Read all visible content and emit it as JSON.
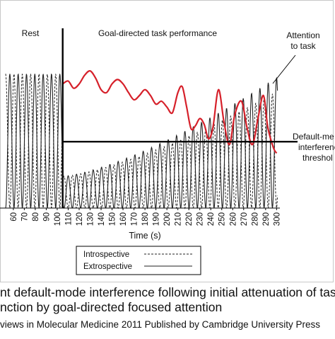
{
  "chart_data": {
    "type": "line",
    "region_labels": {
      "rest": "Rest",
      "task": "Goal-directed task performance"
    },
    "annotations": {
      "attention_line1": "Attention",
      "attention_line2": "to task",
      "threshold_line1": "Default-me",
      "threshold_line2": "interferenc",
      "threshold_line3": "threshol"
    },
    "xlabel": "Time (s)",
    "x_ticks": [
      "60",
      "70",
      "80",
      "90",
      "100",
      "110",
      "120",
      "130",
      "140",
      "150",
      "160",
      "170",
      "180",
      "190",
      "200",
      "210",
      "220",
      "230",
      "240",
      "250",
      "260",
      "270",
      "280",
      "290",
      "300"
    ],
    "xlim": [
      53,
      303
    ],
    "task_onset_x": 105,
    "threshold_level": 0.46,
    "legend": {
      "introspective": "Introspective",
      "extrospective": "Extrospective"
    },
    "series": [
      {
        "name": "Introspective",
        "style": "dashed",
        "color": "#222222",
        "rest_amplitude": 0.93,
        "task_amplitude_start": 0.22,
        "task_amplitude_end": 0.82
      },
      {
        "name": "Extrospective",
        "style": "solid",
        "color": "#222222",
        "rest_amplitude": 0.93,
        "task_amplitude_start": 0.22,
        "task_amplitude_end": 0.92
      },
      {
        "name": "Attention to task",
        "style": "solid",
        "color": "#d6202a",
        "points": [
          [
            105,
            0.86
          ],
          [
            110,
            0.88
          ],
          [
            115,
            0.83
          ],
          [
            120,
            0.86
          ],
          [
            125,
            0.92
          ],
          [
            130,
            0.95
          ],
          [
            135,
            0.9
          ],
          [
            140,
            0.82
          ],
          [
            145,
            0.8
          ],
          [
            150,
            0.86
          ],
          [
            155,
            0.89
          ],
          [
            160,
            0.86
          ],
          [
            165,
            0.8
          ],
          [
            170,
            0.75
          ],
          [
            175,
            0.78
          ],
          [
            180,
            0.82
          ],
          [
            185,
            0.78
          ],
          [
            190,
            0.72
          ],
          [
            195,
            0.74
          ],
          [
            200,
            0.7
          ],
          [
            205,
            0.66
          ],
          [
            210,
            0.8
          ],
          [
            214,
            0.84
          ],
          [
            218,
            0.7
          ],
          [
            222,
            0.55
          ],
          [
            226,
            0.57
          ],
          [
            230,
            0.62
          ],
          [
            234,
            0.58
          ],
          [
            238,
            0.48
          ],
          [
            242,
            0.56
          ],
          [
            247,
            0.82
          ],
          [
            252,
            0.6
          ],
          [
            257,
            0.44
          ],
          [
            262,
            0.65
          ],
          [
            268,
            0.74
          ],
          [
            273,
            0.56
          ],
          [
            278,
            0.44
          ],
          [
            283,
            0.62
          ],
          [
            288,
            0.78
          ],
          [
            292,
            0.56
          ],
          [
            297,
            0.42
          ],
          [
            300,
            0.38
          ]
        ]
      }
    ],
    "caption": {
      "line1": "nt default-mode interference following initial attenuation of task-",
      "line2": "nction by goal-directed focused attention",
      "line3": "views in Molecular Medicine 2011 Published by Cambridge University Press"
    }
  }
}
